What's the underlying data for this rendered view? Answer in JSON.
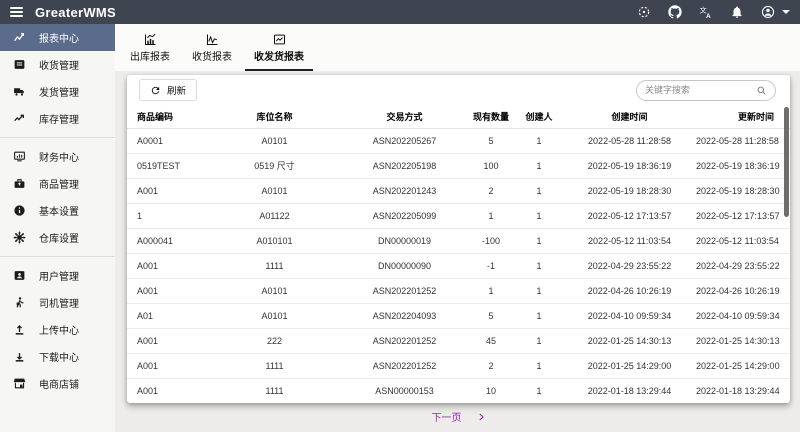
{
  "header": {
    "title": "GreaterWMS",
    "icons": [
      "menu-icon",
      "scan-icon",
      "github-icon",
      "translate-icon",
      "notifications-icon",
      "account-icon",
      "caret-down-icon"
    ]
  },
  "sidebar": {
    "items": [
      {
        "label": "报表中心",
        "icon": "report-center-icon",
        "active": true
      },
      {
        "label": "收货管理",
        "icon": "receiving-icon",
        "active": false
      },
      {
        "label": "发货管理",
        "icon": "shipping-truck-icon",
        "active": false
      },
      {
        "label": "库存管理",
        "icon": "inventory-trend-icon",
        "active": false
      },
      {
        "label": "财务中心",
        "icon": "finance-chart-icon",
        "active": false
      },
      {
        "label": "商品管理",
        "icon": "goods-briefcase-icon",
        "active": false
      },
      {
        "label": "基本设置",
        "icon": "info-icon",
        "active": false
      },
      {
        "label": "仓库设置",
        "icon": "gear-icon",
        "active": false
      },
      {
        "label": "用户管理",
        "icon": "user-badge-icon",
        "active": false
      },
      {
        "label": "司机管理",
        "icon": "driver-walk-icon",
        "active": false
      },
      {
        "label": "上传中心",
        "icon": "upload-icon",
        "active": false
      },
      {
        "label": "下载中心",
        "icon": "download-icon",
        "active": false
      },
      {
        "label": "电商店铺",
        "icon": "store-icon",
        "active": false
      }
    ]
  },
  "tabs": [
    {
      "label": "出库报表",
      "active": false
    },
    {
      "label": "收货报表",
      "active": false
    },
    {
      "label": "收发货报表",
      "active": true
    }
  ],
  "toolbar": {
    "refresh_label": "刷新",
    "search_placeholder": "关键字搜索"
  },
  "table": {
    "columns": [
      "商品编码",
      "库位名称",
      "交易方式",
      "现有数量",
      "创建人",
      "创建时间",
      "更新时间"
    ],
    "rows": [
      [
        "A0001",
        "A0101",
        "ASN202205267",
        "5",
        "1",
        "2022-05-28 11:28:58",
        "2022-05-28 11:28:58"
      ],
      [
        "0519TEST",
        "0519 尺寸",
        "ASN202205198",
        "100",
        "1",
        "2022-05-19 18:36:19",
        "2022-05-19 18:36:19"
      ],
      [
        "A001",
        "A0101",
        "ASN202201243",
        "2",
        "1",
        "2022-05-19 18:28:30",
        "2022-05-19 18:28:30"
      ],
      [
        "1",
        "A01122",
        "ASN202205099",
        "1",
        "1",
        "2022-05-12 17:13:57",
        "2022-05-12 17:13:57"
      ],
      [
        "A000041",
        "A010101",
        "DN00000019",
        "-100",
        "1",
        "2022-05-12 11:03:54",
        "2022-05-12 11:03:54"
      ],
      [
        "A001",
        "1111",
        "DN00000090",
        "-1",
        "1",
        "2022-04-29 23:55:22",
        "2022-04-29 23:55:22"
      ],
      [
        "A001",
        "A0101",
        "ASN202201252",
        "1",
        "1",
        "2022-04-26 10:26:19",
        "2022-04-26 10:26:19"
      ],
      [
        "A01",
        "A0101",
        "ASN202204093",
        "5",
        "1",
        "2022-04-10 09:59:34",
        "2022-04-10 09:59:34"
      ],
      [
        "A001",
        "222",
        "ASN202201252",
        "45",
        "1",
        "2022-01-25 14:30:13",
        "2022-01-25 14:30:13"
      ],
      [
        "A001",
        "1111",
        "ASN202201252",
        "2",
        "1",
        "2022-01-25 14:29:00",
        "2022-01-25 14:29:00"
      ],
      [
        "A001",
        "1111",
        "ASN00000153",
        "10",
        "1",
        "2022-01-18 13:29:44",
        "2022-01-18 13:29:44"
      ]
    ]
  },
  "pagination": {
    "next_label": "下一页"
  },
  "colors": {
    "topbar_bg": "#3e4450",
    "sidebar_active_bg": "#5a6b8c",
    "accent_purple": "#9c27b0",
    "page_bg": "#edecea"
  }
}
